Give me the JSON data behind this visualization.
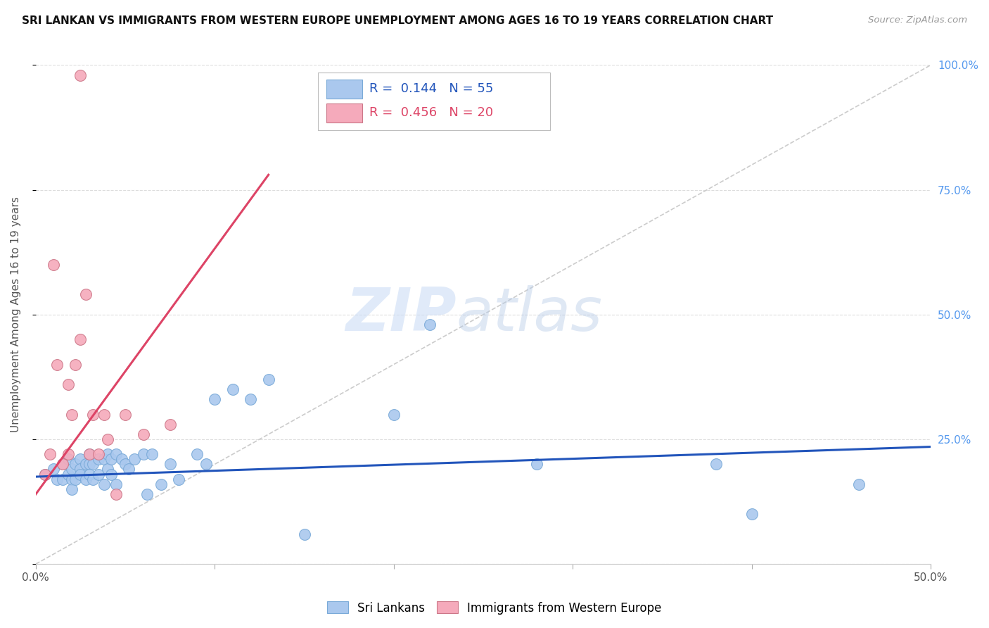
{
  "title": "SRI LANKAN VS IMMIGRANTS FROM WESTERN EUROPE UNEMPLOYMENT AMONG AGES 16 TO 19 YEARS CORRELATION CHART",
  "source": "Source: ZipAtlas.com",
  "ylabel": "Unemployment Among Ages 16 to 19 years",
  "xlim": [
    0.0,
    0.5
  ],
  "ylim": [
    0.0,
    1.0
  ],
  "blue_R": "0.144",
  "blue_N": "55",
  "pink_R": "0.456",
  "pink_N": "20",
  "blue_color": "#aac8ee",
  "pink_color": "#f5aabb",
  "blue_line_color": "#2255bb",
  "pink_line_color": "#dd4466",
  "diagonal_color": "#cccccc",
  "background_color": "#ffffff",
  "grid_color": "#dddddd",
  "blue_scatter_x": [
    0.005,
    0.01,
    0.012,
    0.015,
    0.015,
    0.018,
    0.018,
    0.02,
    0.02,
    0.02,
    0.022,
    0.022,
    0.025,
    0.025,
    0.025,
    0.028,
    0.028,
    0.03,
    0.03,
    0.03,
    0.032,
    0.032,
    0.035,
    0.035,
    0.038,
    0.038,
    0.04,
    0.04,
    0.042,
    0.042,
    0.045,
    0.045,
    0.048,
    0.05,
    0.052,
    0.055,
    0.06,
    0.062,
    0.065,
    0.07,
    0.075,
    0.08,
    0.09,
    0.095,
    0.1,
    0.11,
    0.12,
    0.13,
    0.15,
    0.2,
    0.22,
    0.28,
    0.38,
    0.4,
    0.46
  ],
  "blue_scatter_y": [
    0.18,
    0.19,
    0.17,
    0.2,
    0.17,
    0.18,
    0.21,
    0.19,
    0.17,
    0.15,
    0.2,
    0.17,
    0.21,
    0.19,
    0.18,
    0.2,
    0.17,
    0.22,
    0.2,
    0.18,
    0.2,
    0.17,
    0.21,
    0.18,
    0.21,
    0.16,
    0.22,
    0.19,
    0.21,
    0.18,
    0.22,
    0.16,
    0.21,
    0.2,
    0.19,
    0.21,
    0.22,
    0.14,
    0.22,
    0.16,
    0.2,
    0.17,
    0.22,
    0.2,
    0.33,
    0.35,
    0.33,
    0.37,
    0.06,
    0.3,
    0.48,
    0.2,
    0.2,
    0.1,
    0.16
  ],
  "pink_scatter_x": [
    0.005,
    0.008,
    0.01,
    0.012,
    0.015,
    0.018,
    0.018,
    0.02,
    0.022,
    0.025,
    0.028,
    0.03,
    0.032,
    0.035,
    0.038,
    0.04,
    0.045,
    0.05,
    0.06,
    0.075
  ],
  "pink_scatter_y": [
    0.18,
    0.22,
    0.6,
    0.4,
    0.2,
    0.36,
    0.22,
    0.3,
    0.4,
    0.45,
    0.54,
    0.22,
    0.3,
    0.22,
    0.3,
    0.25,
    0.14,
    0.3,
    0.26,
    0.28
  ],
  "pink_outlier_x": [
    0.025
  ],
  "pink_outlier_y": [
    0.98
  ],
  "blue_line_x": [
    0.0,
    0.5
  ],
  "blue_line_y": [
    0.175,
    0.235
  ],
  "pink_line_x": [
    0.0,
    0.13
  ],
  "pink_line_y": [
    0.14,
    0.78
  ],
  "watermark_zip": "ZIP",
  "watermark_atlas": "atlas"
}
